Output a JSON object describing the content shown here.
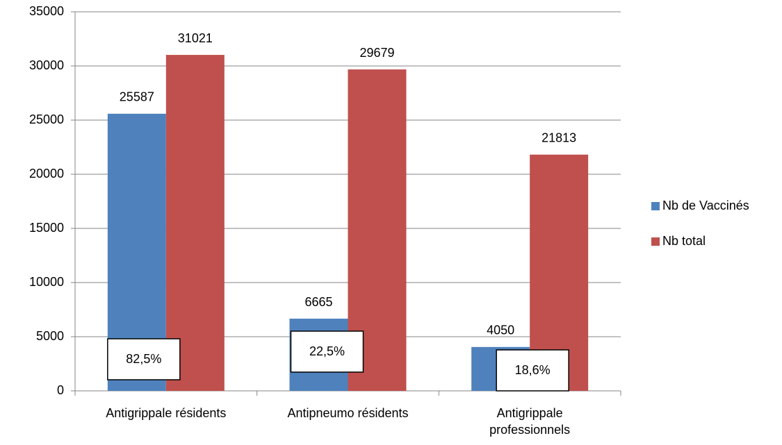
{
  "chart_data": {
    "type": "bar",
    "categories": [
      "Antigrippale résidents",
      "Antipneumo résidents",
      "Antigrippale professionnels"
    ],
    "series": [
      {
        "name": "Nb de Vaccinés",
        "color": "#4f81bd",
        "values": [
          25587,
          6665,
          4050
        ]
      },
      {
        "name": "Nb total",
        "color": "#c0504d",
        "values": [
          31021,
          29679,
          21813
        ]
      }
    ],
    "annotations": [
      "82,5%",
      "22,5%",
      "18,6%"
    ],
    "ylim": [
      0,
      35000
    ],
    "yticks": [
      0,
      5000,
      10000,
      15000,
      20000,
      25000,
      30000,
      35000
    ],
    "grid": true,
    "legend": "right"
  }
}
